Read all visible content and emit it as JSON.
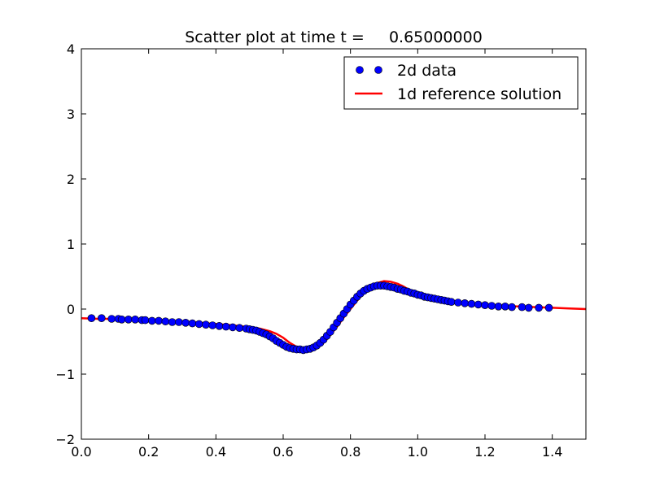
{
  "chart_data": {
    "type": "scatter",
    "title": "Scatter plot at time t =     0.65000000",
    "xlabel": "",
    "ylabel": "",
    "xlim": [
      0.0,
      1.5
    ],
    "ylim": [
      -2,
      4
    ],
    "x_ticks": [
      "0.0",
      "0.2",
      "0.4",
      "0.6",
      "0.8",
      "1.0",
      "1.2",
      "1.4"
    ],
    "y_ticks": [
      "−2",
      "−1",
      "0",
      "1",
      "2",
      "3",
      "4"
    ],
    "grid": false,
    "legend_position": "top-right",
    "series": [
      {
        "name": "2d data",
        "kind": "scatter",
        "color": "#0000ff",
        "x": [
          0.03,
          0.06,
          0.09,
          0.11,
          0.12,
          0.14,
          0.16,
          0.18,
          0.19,
          0.21,
          0.23,
          0.25,
          0.27,
          0.29,
          0.31,
          0.33,
          0.35,
          0.37,
          0.39,
          0.41,
          0.43,
          0.45,
          0.47,
          0.49,
          0.5,
          0.51,
          0.52,
          0.53,
          0.54,
          0.55,
          0.56,
          0.57,
          0.58,
          0.59,
          0.6,
          0.61,
          0.62,
          0.63,
          0.64,
          0.65,
          0.66,
          0.67,
          0.68,
          0.69,
          0.7,
          0.71,
          0.72,
          0.73,
          0.74,
          0.75,
          0.76,
          0.77,
          0.78,
          0.79,
          0.8,
          0.81,
          0.82,
          0.83,
          0.84,
          0.85,
          0.86,
          0.87,
          0.88,
          0.89,
          0.9,
          0.91,
          0.92,
          0.93,
          0.94,
          0.95,
          0.96,
          0.97,
          0.98,
          0.99,
          1.0,
          1.01,
          1.02,
          1.03,
          1.04,
          1.05,
          1.06,
          1.07,
          1.08,
          1.09,
          1.1,
          1.12,
          1.14,
          1.16,
          1.18,
          1.2,
          1.22,
          1.24,
          1.26,
          1.28,
          1.31,
          1.33,
          1.36,
          1.39
        ],
        "y": [
          -0.14,
          -0.14,
          -0.15,
          -0.15,
          -0.16,
          -0.16,
          -0.16,
          -0.17,
          -0.17,
          -0.18,
          -0.18,
          -0.19,
          -0.2,
          -0.2,
          -0.21,
          -0.22,
          -0.23,
          -0.24,
          -0.25,
          -0.26,
          -0.27,
          -0.28,
          -0.29,
          -0.3,
          -0.31,
          -0.32,
          -0.33,
          -0.35,
          -0.37,
          -0.39,
          -0.42,
          -0.45,
          -0.49,
          -0.52,
          -0.55,
          -0.58,
          -0.6,
          -0.61,
          -0.62,
          -0.62,
          -0.63,
          -0.62,
          -0.61,
          -0.59,
          -0.56,
          -0.52,
          -0.47,
          -0.41,
          -0.35,
          -0.28,
          -0.21,
          -0.14,
          -0.07,
          0.0,
          0.07,
          0.13,
          0.19,
          0.24,
          0.28,
          0.31,
          0.33,
          0.35,
          0.36,
          0.36,
          0.36,
          0.35,
          0.34,
          0.33,
          0.31,
          0.3,
          0.28,
          0.27,
          0.25,
          0.24,
          0.22,
          0.21,
          0.19,
          0.18,
          0.17,
          0.16,
          0.15,
          0.14,
          0.13,
          0.12,
          0.11,
          0.1,
          0.09,
          0.08,
          0.07,
          0.06,
          0.05,
          0.04,
          0.04,
          0.03,
          0.03,
          0.02,
          0.02,
          0.02
        ]
      },
      {
        "name": "1d reference solution",
        "kind": "line",
        "color": "#ff0000",
        "x": [
          0.0,
          0.05,
          0.1,
          0.15,
          0.2,
          0.25,
          0.3,
          0.35,
          0.4,
          0.45,
          0.5,
          0.53,
          0.56,
          0.58,
          0.6,
          0.62,
          0.64,
          0.66,
          0.68,
          0.7,
          0.72,
          0.74,
          0.76,
          0.78,
          0.8,
          0.82,
          0.84,
          0.86,
          0.88,
          0.9,
          0.92,
          0.94,
          0.96,
          0.98,
          1.0,
          1.03,
          1.06,
          1.1,
          1.15,
          1.2,
          1.25,
          1.3,
          1.35,
          1.4,
          1.45,
          1.5
        ],
        "y": [
          -0.14,
          -0.15,
          -0.15,
          -0.16,
          -0.17,
          -0.18,
          -0.19,
          -0.21,
          -0.23,
          -0.25,
          -0.28,
          -0.3,
          -0.34,
          -0.38,
          -0.44,
          -0.52,
          -0.58,
          -0.61,
          -0.62,
          -0.6,
          -0.52,
          -0.4,
          -0.27,
          -0.13,
          0.0,
          0.13,
          0.25,
          0.34,
          0.4,
          0.43,
          0.42,
          0.39,
          0.34,
          0.28,
          0.22,
          0.17,
          0.13,
          0.1,
          0.08,
          0.06,
          0.05,
          0.04,
          0.03,
          0.02,
          0.01,
          0.0
        ]
      }
    ]
  }
}
